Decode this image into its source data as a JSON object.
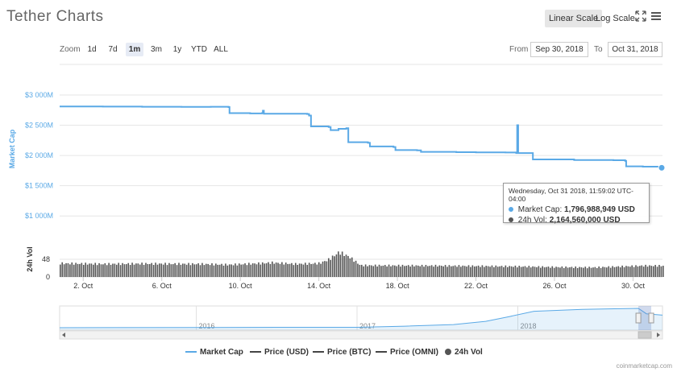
{
  "page": {
    "title": "Tether Charts",
    "credit": "coinmarketcap.com"
  },
  "toolbar": {
    "linear_scale": "Linear Scale",
    "log_scale": "Log Scale",
    "fullscreen_icon": "expand-arrows-icon",
    "menu_icon": "hamburger-menu-icon",
    "zoom_label": "Zoom",
    "zoom_buttons": [
      "1d",
      "7d",
      "1m",
      "3m",
      "1y",
      "YTD",
      "ALL"
    ],
    "zoom_active": "1m",
    "from_label": "From",
    "from_value": "Sep 30, 2018",
    "to_label": "To",
    "to_value": "Oct 31, 2018"
  },
  "tooltip": {
    "title": "Wednesday, Oct 31 2018, 11:59:02 UTC-04:00",
    "market_cap_label": "Market Cap:",
    "market_cap_value": "1,796,988,949 USD",
    "vol_label": "24h Vol:",
    "vol_value": "2,164,560,000 USD"
  },
  "legend": [
    {
      "label": "Market Cap",
      "color": "#5aa9e6",
      "marker": "line"
    },
    {
      "label": "Price (USD)",
      "color": "#444444",
      "marker": "line"
    },
    {
      "label": "Price (BTC)",
      "color": "#444444",
      "marker": "line"
    },
    {
      "label": "Price (OMNI)",
      "color": "#444444",
      "marker": "line"
    },
    {
      "label": "24h Vol",
      "color": "#555555",
      "marker": "dot"
    }
  ],
  "chart_data": [
    {
      "type": "line",
      "name": "Market Cap",
      "ylabel": "Market Cap",
      "ylim": [
        1000,
        3000
      ],
      "y_ticks": [
        "$1 000M",
        "$1 500M",
        "$2 000M",
        "$2 500M",
        "$3 000M"
      ],
      "y_tick_values": [
        1000,
        1500,
        2000,
        2500,
        3000
      ],
      "x_ticks": [
        "2. Oct",
        "6. Oct",
        "10. Oct",
        "14. Oct",
        "18. Oct",
        "22. Oct",
        "26. Oct",
        "30. Oct"
      ],
      "x_tick_values": [
        2,
        6,
        10,
        14,
        18,
        22,
        26,
        30
      ],
      "xlim": [
        0.8,
        31.5
      ],
      "color": "#5aa9e6",
      "points": [
        [
          0.8,
          2810
        ],
        [
          3,
          2808
        ],
        [
          5,
          2805
        ],
        [
          7,
          2803
        ],
        [
          8.5,
          2805
        ],
        [
          9.4,
          2800
        ],
        [
          9.45,
          2700
        ],
        [
          10.5,
          2695
        ],
        [
          11.1,
          2700
        ],
        [
          11.15,
          2740
        ],
        [
          11.2,
          2690
        ],
        [
          12,
          2690
        ],
        [
          13.4,
          2685
        ],
        [
          13.5,
          2660
        ],
        [
          13.6,
          2480
        ],
        [
          14.5,
          2470
        ],
        [
          14.6,
          2420
        ],
        [
          15,
          2440
        ],
        [
          15.4,
          2450
        ],
        [
          15.5,
          2220
        ],
        [
          16.5,
          2210
        ],
        [
          16.6,
          2150
        ],
        [
          17.8,
          2140
        ],
        [
          17.9,
          2090
        ],
        [
          19,
          2085
        ],
        [
          19.2,
          2060
        ],
        [
          21,
          2055
        ],
        [
          22,
          2052
        ],
        [
          23.5,
          2050
        ],
        [
          24.05,
          2040
        ],
        [
          24.1,
          2500
        ],
        [
          24.15,
          2040
        ],
        [
          24.5,
          2040
        ],
        [
          24.9,
          1935
        ],
        [
          27,
          1925
        ],
        [
          29,
          1922
        ],
        [
          29.6,
          1910
        ],
        [
          29.65,
          1820
        ],
        [
          30.5,
          1815
        ],
        [
          31.5,
          1797
        ]
      ]
    },
    {
      "type": "bar",
      "name": "24h Vol",
      "ylabel": "24h Vol",
      "ylim": [
        0,
        96
      ],
      "y_ticks": [
        "0",
        "48"
      ],
      "y_tick_values": [
        0,
        48
      ],
      "color": "#555555",
      "segments": [
        [
          0.8,
          40
        ],
        [
          3,
          38
        ],
        [
          5,
          39
        ],
        [
          8,
          38
        ],
        [
          9.4,
          36
        ],
        [
          11,
          40
        ],
        [
          11.6,
          42
        ],
        [
          12.8,
          38
        ],
        [
          14,
          40
        ],
        [
          14.5,
          52
        ],
        [
          15,
          73
        ],
        [
          15.5,
          60
        ],
        [
          16.1,
          34
        ],
        [
          20,
          33
        ],
        [
          24,
          31
        ],
        [
          26,
          29
        ],
        [
          28,
          28
        ],
        [
          29.5,
          31
        ],
        [
          30.5,
          33
        ],
        [
          31.5,
          33
        ]
      ]
    },
    {
      "type": "area",
      "name": "Navigator",
      "x_ticks": [
        "2016",
        "2017",
        "2018"
      ],
      "x_tick_values": [
        2016,
        2017,
        2018
      ],
      "xlim": [
        2015.15,
        2018.9
      ],
      "color": "#5aa9e6",
      "points": [
        [
          2015.15,
          0.0
        ],
        [
          2016.0,
          0.01
        ],
        [
          2016.5,
          0.02
        ],
        [
          2017.0,
          0.02
        ],
        [
          2017.3,
          0.08
        ],
        [
          2017.6,
          0.16
        ],
        [
          2017.8,
          0.33
        ],
        [
          2017.95,
          0.58
        ],
        [
          2018.1,
          0.85
        ],
        [
          2018.4,
          0.95
        ],
        [
          2018.6,
          0.98
        ],
        [
          2018.75,
          1.0
        ],
        [
          2018.8,
          0.72
        ],
        [
          2018.9,
          0.65
        ]
      ],
      "selected_range": [
        2018.75,
        2018.83
      ]
    }
  ]
}
